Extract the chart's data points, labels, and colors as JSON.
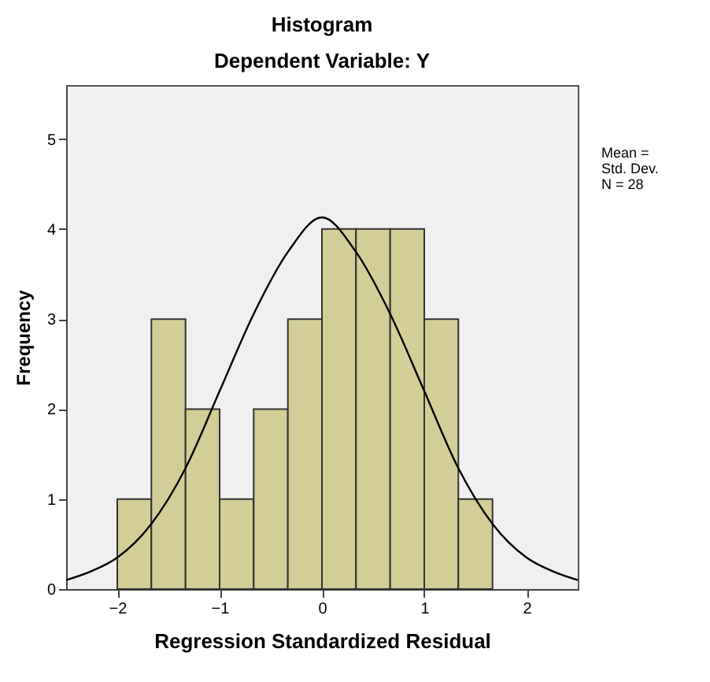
{
  "chart_data": {
    "type": "histogram",
    "title": "Histogram",
    "subtitle": "Dependent Variable: Y",
    "xlabel": "Regression Standardized Residual",
    "ylabel": "Frequency",
    "bins": [
      -2,
      -1.667,
      -1.333,
      -1,
      -0.667,
      -0.333,
      0,
      0.333,
      0.667,
      1,
      1.333,
      1.667
    ],
    "series": [
      {
        "color": "#d3ce97",
        "values": [
          1,
          3,
          2,
          1,
          2,
          3,
          4,
          4,
          4,
          3,
          1
        ]
      },
      {
        "type": "line",
        "color": "#000000",
        "x": [
          -2.5,
          -2.25,
          -2,
          -1.67,
          -1.33,
          -1,
          -0.67,
          -0.33,
          0,
          0.33,
          0.67,
          1,
          1.33,
          1.67,
          2,
          2.25,
          2.5
        ],
        "values": [
          0.1,
          0.2,
          0.35,
          0.72,
          1.35,
          2.2,
          3.05,
          3.75,
          4.13,
          3.75,
          3.05,
          2.2,
          1.35,
          0.72,
          0.35,
          0.2,
          0.1
        ]
      }
    ],
    "xlim": [
      -2.5,
      2.5
    ],
    "xticks": [
      -2,
      -1,
      0,
      1,
      2
    ],
    "ylim": [
      0,
      5.6
    ],
    "yticks": [
      0,
      1,
      2,
      3,
      4,
      5
    ],
    "grid": false,
    "annotations": [
      "Mean =",
      "Std. Dev.",
      "N = 28"
    ]
  }
}
